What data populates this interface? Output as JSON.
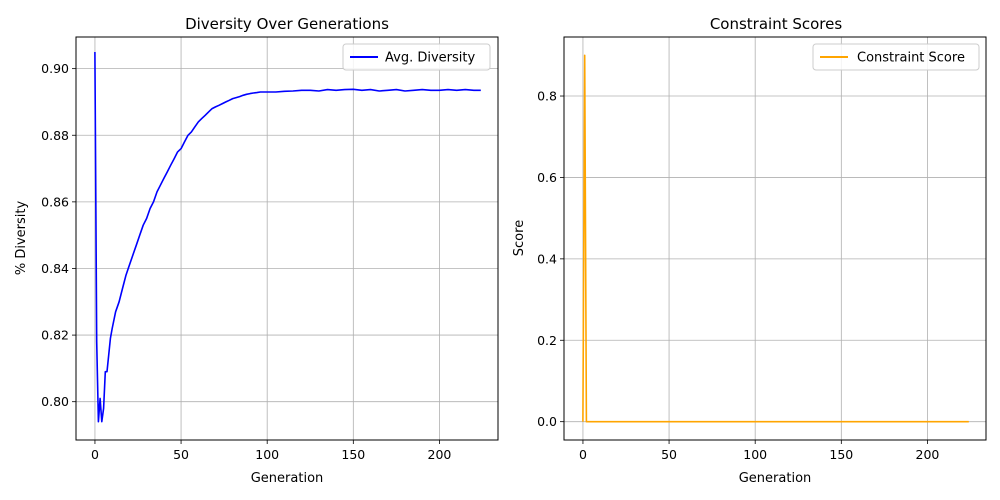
{
  "chart_data": [
    {
      "type": "line",
      "title": "Diversity Over Generations",
      "xlabel": "Generation",
      "ylabel": "% Diversity",
      "xlim": [
        -11,
        234
      ],
      "ylim": [
        0.7885,
        0.9095
      ],
      "xticks": [
        0,
        50,
        100,
        150,
        200
      ],
      "yticks": [
        0.8,
        0.82,
        0.84,
        0.86,
        0.88,
        0.9
      ],
      "ytick_labels": [
        "0.80",
        "0.82",
        "0.84",
        "0.86",
        "0.88",
        "0.90"
      ],
      "grid": true,
      "legend": "top-right",
      "series": [
        {
          "name": "Avg. Diversity",
          "color": "#0000ff",
          "x": [
            0,
            1,
            2,
            3,
            4,
            5,
            6,
            7,
            8,
            9,
            10,
            12,
            14,
            16,
            18,
            20,
            22,
            24,
            26,
            28,
            30,
            32,
            34,
            36,
            38,
            40,
            42,
            44,
            46,
            48,
            50,
            52,
            54,
            56,
            58,
            60,
            62,
            64,
            66,
            68,
            70,
            72,
            74,
            76,
            78,
            80,
            82,
            84,
            86,
            88,
            90,
            92,
            94,
            96,
            98,
            100,
            105,
            110,
            115,
            120,
            125,
            130,
            135,
            140,
            145,
            150,
            155,
            160,
            165,
            170,
            175,
            180,
            185,
            190,
            195,
            200,
            205,
            210,
            215,
            220,
            224
          ],
          "values": [
            0.905,
            0.818,
            0.794,
            0.801,
            0.794,
            0.798,
            0.809,
            0.809,
            0.814,
            0.819,
            0.822,
            0.827,
            0.83,
            0.834,
            0.838,
            0.841,
            0.844,
            0.847,
            0.85,
            0.853,
            0.855,
            0.858,
            0.86,
            0.863,
            0.865,
            0.867,
            0.869,
            0.871,
            0.873,
            0.875,
            0.876,
            0.878,
            0.88,
            0.881,
            0.8825,
            0.884,
            0.885,
            0.886,
            0.887,
            0.888,
            0.8885,
            0.889,
            0.8895,
            0.89,
            0.8905,
            0.891,
            0.8913,
            0.8916,
            0.892,
            0.8923,
            0.8925,
            0.8927,
            0.8928,
            0.893,
            0.893,
            0.893,
            0.893,
            0.8932,
            0.8933,
            0.8935,
            0.8935,
            0.8933,
            0.8937,
            0.8935,
            0.8937,
            0.8938,
            0.8935,
            0.8937,
            0.8933,
            0.8935,
            0.8937,
            0.8933,
            0.8935,
            0.8937,
            0.8935,
            0.8935,
            0.8937,
            0.8935,
            0.8937,
            0.8935,
            0.8935
          ]
        }
      ]
    },
    {
      "type": "line",
      "title": "Constraint Scores",
      "xlabel": "Generation",
      "ylabel": "Score",
      "xlim": [
        -11,
        234
      ],
      "ylim": [
        -0.045,
        0.945
      ],
      "xticks": [
        0,
        50,
        100,
        150,
        200
      ],
      "yticks": [
        0.0,
        0.2,
        0.4,
        0.6,
        0.8
      ],
      "ytick_labels": [
        "0.0",
        "0.2",
        "0.4",
        "0.6",
        "0.8"
      ],
      "grid": true,
      "legend": "top-right",
      "series": [
        {
          "name": "Constraint Score",
          "color": "#ffa500",
          "x": [
            0,
            1,
            2,
            3,
            224
          ],
          "values": [
            0.0,
            0.9,
            0.0,
            0.0,
            0.0
          ]
        }
      ]
    }
  ]
}
